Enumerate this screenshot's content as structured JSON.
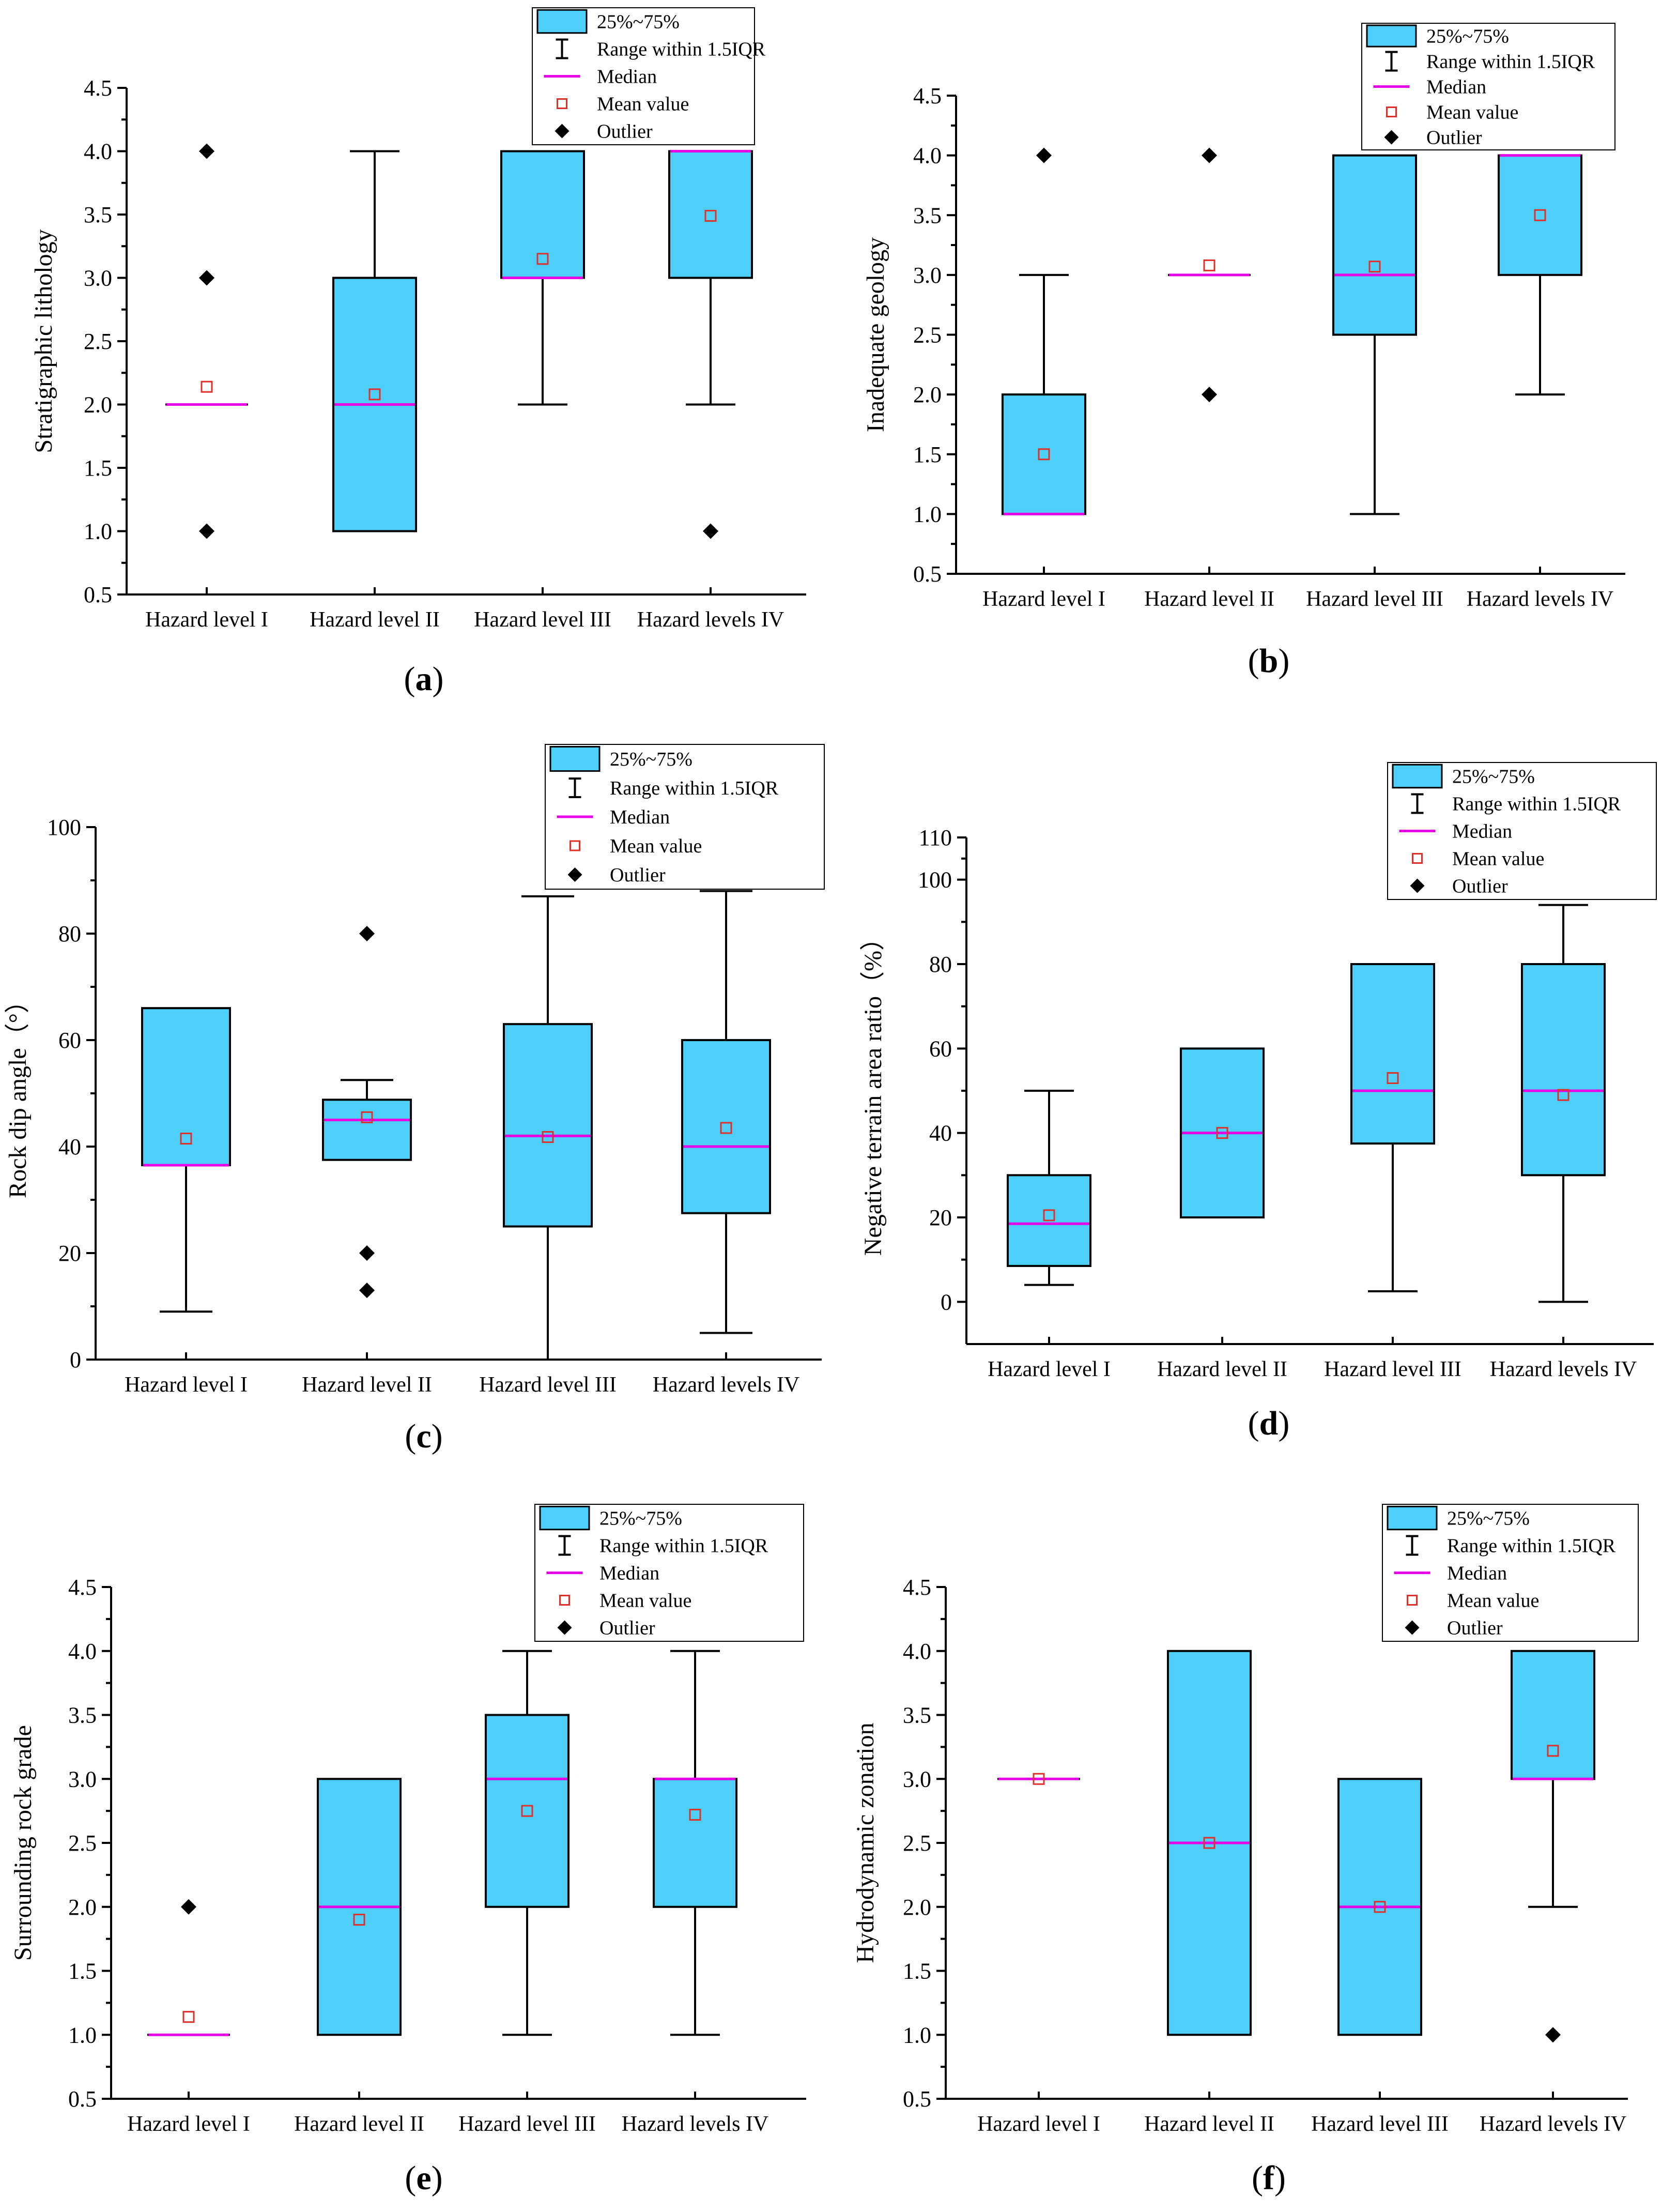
{
  "colors": {
    "box_fill": "#4DCFFA",
    "median": "#E600E6",
    "mean": "#E0302A",
    "outlier": "#000000",
    "axis": "#000000"
  },
  "legend": {
    "items": [
      {
        "key": "box",
        "label": "25%~75%"
      },
      {
        "key": "whisker",
        "label": "Range within 1.5IQR"
      },
      {
        "key": "median",
        "label": "Median"
      },
      {
        "key": "mean",
        "label": "Mean value"
      },
      {
        "key": "outlier",
        "label": "Outlier"
      }
    ]
  },
  "chart_data": [
    {
      "type": "box",
      "panel": "(a)",
      "panel_letter": "a",
      "ylabel": "Stratigraphic lithology",
      "ylim": [
        0.5,
        4.5
      ],
      "ticks": [
        "0.5",
        "1.0",
        "1.5",
        "2.0",
        "2.5",
        "3.0",
        "3.5",
        "4.0",
        "4.5"
      ],
      "categories": [
        "Hazard level I",
        "Hazard level II",
        "Hazard level III",
        "Hazard levels IV"
      ],
      "boxes": [
        {
          "q1": 2.0,
          "median": 2.0,
          "q3": 2.0,
          "whisker_low": 2.0,
          "whisker_high": 2.0,
          "mean": 2.14,
          "outliers": [
            1.0,
            3.0,
            4.0
          ]
        },
        {
          "q1": 1.0,
          "median": 2.0,
          "q3": 3.0,
          "whisker_low": 1.0,
          "whisker_high": 4.0,
          "mean": 2.08,
          "outliers": []
        },
        {
          "q1": 3.0,
          "median": 3.0,
          "q3": 4.0,
          "whisker_low": 2.0,
          "whisker_high": 4.0,
          "mean": 3.15,
          "outliers": []
        },
        {
          "q1": 3.0,
          "median": 4.0,
          "q3": 4.0,
          "whisker_low": 2.0,
          "whisker_high": 4.0,
          "mean": 3.49,
          "outliers": [
            1.0
          ]
        }
      ]
    },
    {
      "type": "box",
      "panel": "(b)",
      "panel_letter": "b",
      "ylabel": "Inadequate geology",
      "ylim": [
        0.5,
        4.5
      ],
      "ticks": [
        "0.5",
        "1.0",
        "1.5",
        "2.0",
        "2.5",
        "3.0",
        "3.5",
        "4.0",
        "4.5"
      ],
      "categories": [
        "Hazard level I",
        "Hazard level II",
        "Hazard level III",
        "Hazard levels IV"
      ],
      "boxes": [
        {
          "q1": 1.0,
          "median": 1.0,
          "q3": 2.0,
          "whisker_low": 1.0,
          "whisker_high": 3.0,
          "mean": 1.5,
          "outliers": [
            4.0
          ]
        },
        {
          "q1": 3.0,
          "median": 3.0,
          "q3": 3.0,
          "whisker_low": 3.0,
          "whisker_high": 3.0,
          "mean": 3.08,
          "outliers": [
            2.0,
            4.0
          ]
        },
        {
          "q1": 2.5,
          "median": 3.0,
          "q3": 4.0,
          "whisker_low": 1.0,
          "whisker_high": 4.0,
          "mean": 3.07,
          "outliers": []
        },
        {
          "q1": 3.0,
          "median": 4.0,
          "q3": 4.0,
          "whisker_low": 2.0,
          "whisker_high": 4.0,
          "mean": 3.5,
          "outliers": []
        }
      ]
    },
    {
      "type": "box",
      "panel": "(c)",
      "panel_letter": "c",
      "ylabel": "Rock dip angle（°）",
      "ylim": [
        0,
        100
      ],
      "ticks": [
        "0",
        "20",
        "40",
        "60",
        "80",
        "100"
      ],
      "categories": [
        "Hazard level I",
        "Hazard level II",
        "Hazard level III",
        "Hazard levels IV"
      ],
      "boxes": [
        {
          "q1": 36.5,
          "median": 36.5,
          "q3": 66,
          "whisker_low": 9,
          "whisker_high": 66,
          "mean": 41.5,
          "outliers": []
        },
        {
          "q1": 37.5,
          "median": 45,
          "q3": 48.8,
          "whisker_low": 37.5,
          "whisker_high": 52.5,
          "mean": 45.5,
          "outliers": [
            13,
            20,
            80
          ]
        },
        {
          "q1": 25,
          "median": 42,
          "q3": 63,
          "whisker_low": 0,
          "whisker_high": 87,
          "mean": 41.8,
          "outliers": []
        },
        {
          "q1": 27.5,
          "median": 40,
          "q3": 60,
          "whisker_low": 5,
          "whisker_high": 88,
          "mean": 43.5,
          "outliers": []
        }
      ]
    },
    {
      "type": "box",
      "panel": "(d)",
      "panel_letter": "d",
      "ylabel": "Negative terrain area ratio（%）",
      "ylim": [
        -10,
        110
      ],
      "ticks": [
        "0",
        "20",
        "40",
        "60",
        "80",
        "100",
        "110"
      ],
      "categories": [
        "Hazard level I",
        "Hazard level II",
        "Hazard level III",
        "Hazard levels IV"
      ],
      "boxes": [
        {
          "q1": 8.5,
          "median": 18.5,
          "q3": 30,
          "whisker_low": 4,
          "whisker_high": 50,
          "mean": 20.5,
          "outliers": []
        },
        {
          "q1": 20,
          "median": 40,
          "q3": 60,
          "whisker_low": 20,
          "whisker_high": 60,
          "mean": 40,
          "outliers": []
        },
        {
          "q1": 37.5,
          "median": 50,
          "q3": 80,
          "whisker_low": 2.5,
          "whisker_high": 80,
          "mean": 53,
          "outliers": []
        },
        {
          "q1": 30,
          "median": 50,
          "q3": 80,
          "whisker_low": 0,
          "whisker_high": 94,
          "mean": 49,
          "outliers": []
        }
      ]
    },
    {
      "type": "box",
      "panel": "(e)",
      "panel_letter": "e",
      "ylabel": "Surrounding rock grade",
      "ylim": [
        0.5,
        4.5
      ],
      "ticks": [
        "0.5",
        "1.0",
        "1.5",
        "2.0",
        "2.5",
        "3.0",
        "3.5",
        "4.0",
        "4.5"
      ],
      "categories": [
        "Hazard level I",
        "Hazard level II",
        "Hazard level III",
        "Hazard levels IV"
      ],
      "boxes": [
        {
          "q1": 1.0,
          "median": 1.0,
          "q3": 1.0,
          "whisker_low": 1.0,
          "whisker_high": 1.0,
          "mean": 1.14,
          "outliers": [
            2.0
          ]
        },
        {
          "q1": 1.0,
          "median": 2.0,
          "q3": 3.0,
          "whisker_low": 1.0,
          "whisker_high": 3.0,
          "mean": 1.9,
          "outliers": []
        },
        {
          "q1": 2.0,
          "median": 3.0,
          "q3": 3.5,
          "whisker_low": 1.0,
          "whisker_high": 4.0,
          "mean": 2.75,
          "outliers": []
        },
        {
          "q1": 2.0,
          "median": 3.0,
          "q3": 3.0,
          "whisker_low": 1.0,
          "whisker_high": 4.0,
          "mean": 2.72,
          "outliers": []
        }
      ]
    },
    {
      "type": "box",
      "panel": "(f)",
      "panel_letter": "f",
      "ylabel": "Hydrodynamic zonation",
      "ylim": [
        0.5,
        4.5
      ],
      "ticks": [
        "0.5",
        "1.0",
        "1.5",
        "2.0",
        "2.5",
        "3.0",
        "3.5",
        "4.0",
        "4.5"
      ],
      "categories": [
        "Hazard level I",
        "Hazard level II",
        "Hazard level III",
        "Hazard levels IV"
      ],
      "boxes": [
        {
          "q1": 3.0,
          "median": 3.0,
          "q3": 3.0,
          "whisker_low": 3.0,
          "whisker_high": 3.0,
          "mean": 3.0,
          "outliers": []
        },
        {
          "q1": 1.0,
          "median": 2.5,
          "q3": 4.0,
          "whisker_low": 1.0,
          "whisker_high": 4.0,
          "mean": 2.5,
          "outliers": []
        },
        {
          "q1": 1.0,
          "median": 2.0,
          "q3": 3.0,
          "whisker_low": 1.0,
          "whisker_high": 3.0,
          "mean": 2.0,
          "outliers": []
        },
        {
          "q1": 3.0,
          "median": 3.0,
          "q3": 4.0,
          "whisker_low": 2.0,
          "whisker_high": 4.0,
          "mean": 3.22,
          "outliers": [
            1.0
          ]
        }
      ]
    }
  ]
}
